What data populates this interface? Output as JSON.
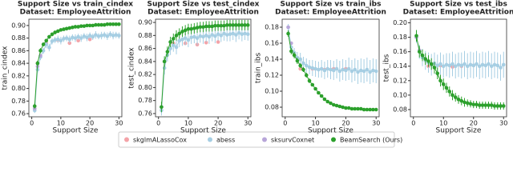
{
  "chart_data": [
    {
      "type": "scatter",
      "title": "Support Size vs train_cindex",
      "subtitle": "Dataset: EmployeeAttrition",
      "xlabel": "Support Size",
      "ylabel": "train_cindex",
      "xlim": [
        -1,
        31
      ],
      "xticks": [
        0,
        10,
        20,
        30
      ],
      "ylim": [
        0.755,
        0.91
      ],
      "yticks": [
        0.76,
        0.78,
        {
          "value": 0.8,
          "label": "0.80"
        },
        0.82,
        0.84,
        0.86,
        0.88,
        {
          "value": 0.9,
          "label": "0.90"
        }
      ],
      "series": [
        {
          "name": "skglmALassoCox",
          "color": "#f4a3a8",
          "x": [
            1,
            2,
            5,
            9,
            13,
            16,
            20
          ],
          "values": [
            0.768,
            0.84,
            0.872,
            0.877,
            0.872,
            0.876,
            0.878
          ]
        },
        {
          "name": "abess",
          "color": "#a6cee3",
          "x": [
            1,
            2,
            3,
            4,
            5,
            6,
            7,
            8,
            9,
            10,
            11,
            12,
            13,
            14,
            15,
            16,
            17,
            18,
            19,
            20,
            21,
            22,
            23,
            24,
            25,
            26,
            27,
            28,
            29,
            30
          ],
          "values": [
            0.765,
            0.83,
            0.85,
            0.86,
            0.87,
            0.865,
            0.875,
            0.877,
            0.878,
            0.876,
            0.879,
            0.88,
            0.878,
            0.881,
            0.88,
            0.882,
            0.88,
            0.883,
            0.881,
            0.884,
            0.882,
            0.885,
            0.883,
            0.884,
            0.885,
            0.883,
            0.886,
            0.884,
            0.885,
            0.884
          ],
          "errors": [
            0.004,
            0.005,
            0.005,
            0.005,
            0.006,
            0.006,
            0.005,
            0.005,
            0.006,
            0.006,
            0.005,
            0.005,
            0.006,
            0.005,
            0.006,
            0.005,
            0.006,
            0.005,
            0.006,
            0.005,
            0.005,
            0.006,
            0.005,
            0.006,
            0.005,
            0.006,
            0.005,
            0.006,
            0.005,
            0.005
          ]
        },
        {
          "name": "sksurvCoxnet",
          "color": "#b8a6d9",
          "x": [
            1,
            2,
            3
          ],
          "values": [
            0.768,
            0.835,
            0.852
          ]
        },
        {
          "name": "BeamSearch (Ours)",
          "color": "#2ca02c",
          "x": [
            1,
            2,
            3,
            4,
            5,
            6,
            7,
            8,
            9,
            10,
            11,
            12,
            13,
            14,
            15,
            16,
            17,
            18,
            19,
            20,
            21,
            22,
            23,
            24,
            25,
            26,
            27,
            28,
            29,
            30
          ],
          "values": [
            0.772,
            0.84,
            0.86,
            0.87,
            0.876,
            0.882,
            0.886,
            0.889,
            0.891,
            0.893,
            0.894,
            0.895,
            0.896,
            0.897,
            0.898,
            0.898,
            0.899,
            0.899,
            0.9,
            0.9,
            0.9,
            0.901,
            0.901,
            0.901,
            0.901,
            0.902,
            0.902,
            0.902,
            0.902,
            0.902
          ],
          "errors": [
            0.004,
            0.004,
            0.004,
            0.003,
            0.003,
            0.003,
            0.003,
            0.003,
            0.002,
            0.002,
            0.002,
            0.002,
            0.002,
            0.002,
            0.002,
            0.002,
            0.002,
            0.002,
            0.002,
            0.002,
            0.002,
            0.002,
            0.002,
            0.002,
            0.002,
            0.002,
            0.002,
            0.002,
            0.002,
            0.002
          ]
        }
      ]
    },
    {
      "type": "scatter",
      "title": "Support Size vs test_cindex",
      "subtitle": "Dataset: EmployeeAttrition",
      "xlabel": "Support Size",
      "ylabel": "test_cindex",
      "xlim": [
        -1,
        31
      ],
      "xticks": [
        0,
        10,
        20,
        30
      ],
      "ylim": [
        0.755,
        0.905
      ],
      "yticks": [
        0.76,
        0.78,
        {
          "value": 0.8,
          "label": "0.80"
        },
        0.82,
        0.84,
        0.86,
        0.88,
        {
          "value": 0.9,
          "label": "0.90"
        }
      ],
      "series": [
        {
          "color": "#f4a3a8",
          "x": [
            2,
            5,
            9,
            13,
            16,
            20
          ],
          "values": [
            0.84,
            0.868,
            0.868,
            0.866,
            0.869,
            0.87
          ]
        },
        {
          "color": "#a6cee3",
          "x": [
            1,
            2,
            3,
            4,
            5,
            6,
            7,
            8,
            9,
            10,
            11,
            12,
            13,
            14,
            15,
            16,
            17,
            18,
            19,
            20,
            21,
            22,
            23,
            24,
            25,
            26,
            27,
            28,
            29,
            30
          ],
          "values": [
            0.765,
            0.83,
            0.85,
            0.86,
            0.865,
            0.862,
            0.872,
            0.874,
            0.876,
            0.873,
            0.877,
            0.878,
            0.876,
            0.879,
            0.878,
            0.88,
            0.878,
            0.881,
            0.879,
            0.882,
            0.88,
            0.883,
            0.881,
            0.882,
            0.883,
            0.881,
            0.884,
            0.882,
            0.883,
            0.882
          ],
          "errors": [
            0.008,
            0.01,
            0.01,
            0.01,
            0.01,
            0.011,
            0.01,
            0.01,
            0.011,
            0.011,
            0.01,
            0.01,
            0.011,
            0.01,
            0.011,
            0.01,
            0.011,
            0.01,
            0.011,
            0.01,
            0.01,
            0.011,
            0.01,
            0.011,
            0.01,
            0.011,
            0.01,
            0.011,
            0.01,
            0.01
          ]
        },
        {
          "color": "#b8a6d9",
          "x": [
            1,
            2
          ],
          "values": [
            0.77,
            0.84
          ]
        },
        {
          "color": "#2ca02c",
          "x": [
            1,
            2,
            3,
            4,
            5,
            6,
            7,
            8,
            9,
            10,
            11,
            12,
            13,
            14,
            15,
            16,
            17,
            18,
            19,
            20,
            21,
            22,
            23,
            24,
            25,
            26,
            27,
            28,
            29,
            30
          ],
          "values": [
            0.77,
            0.84,
            0.855,
            0.87,
            0.875,
            0.88,
            0.883,
            0.886,
            0.888,
            0.89,
            0.89,
            0.891,
            0.892,
            0.893,
            0.893,
            0.894,
            0.894,
            0.894,
            0.895,
            0.895,
            0.895,
            0.895,
            0.896,
            0.896,
            0.896,
            0.896,
            0.896,
            0.896,
            0.896,
            0.896
          ],
          "errors": [
            0.008,
            0.008,
            0.008,
            0.008,
            0.008,
            0.008,
            0.008,
            0.008,
            0.008,
            0.008,
            0.008,
            0.008,
            0.008,
            0.008,
            0.008,
            0.008,
            0.008,
            0.008,
            0.008,
            0.008,
            0.008,
            0.008,
            0.008,
            0.008,
            0.008,
            0.008,
            0.008,
            0.008,
            0.008,
            0.008
          ]
        }
      ]
    },
    {
      "type": "scatter",
      "title": "Support Size vs train_ibs",
      "subtitle": "Dataset: EmployeeAttrition",
      "xlabel": "Support Size",
      "ylabel": "train_ibs",
      "xlim": [
        -1,
        31
      ],
      "xticks": [
        0,
        10,
        20,
        30
      ],
      "ylim": [
        0.068,
        0.19
      ],
      "yticks": [
        0.08,
        {
          "value": 0.1,
          "label": "0.10"
        },
        0.12,
        0.14,
        0.16,
        0.18
      ],
      "series": [
        {
          "color": "#f4a3a8",
          "x": [
            5,
            9,
            13,
            16,
            20
          ],
          "values": [
            0.128,
            0.128,
            0.127,
            0.128,
            0.128
          ]
        },
        {
          "color": "#a6cee3",
          "x": [
            1,
            2,
            3,
            4,
            5,
            6,
            7,
            8,
            9,
            10,
            11,
            12,
            13,
            14,
            15,
            16,
            17,
            18,
            19,
            20,
            21,
            22,
            23,
            24,
            25,
            26,
            27,
            28,
            29,
            30
          ],
          "values": [
            0.18,
            0.155,
            0.148,
            0.142,
            0.14,
            0.135,
            0.132,
            0.13,
            0.129,
            0.128,
            0.127,
            0.128,
            0.126,
            0.128,
            0.127,
            0.126,
            0.128,
            0.125,
            0.127,
            0.126,
            0.128,
            0.125,
            0.127,
            0.124,
            0.126,
            0.125,
            0.127,
            0.124,
            0.126,
            0.125
          ],
          "errors": [
            0.004,
            0.005,
            0.006,
            0.007,
            0.008,
            0.008,
            0.009,
            0.009,
            0.01,
            0.01,
            0.01,
            0.011,
            0.011,
            0.011,
            0.012,
            0.012,
            0.012,
            0.013,
            0.013,
            0.013,
            0.014,
            0.014,
            0.014,
            0.015,
            0.015,
            0.015,
            0.015,
            0.015,
            0.015,
            0.015
          ]
        },
        {
          "color": "#b8a6d9",
          "x": [
            1,
            2
          ],
          "values": [
            0.18,
            0.16
          ]
        },
        {
          "color": "#2ca02c",
          "x": [
            1,
            2,
            3,
            4,
            5,
            6,
            7,
            8,
            9,
            10,
            11,
            12,
            13,
            14,
            15,
            16,
            17,
            18,
            19,
            20,
            21,
            22,
            23,
            24,
            25,
            26,
            27,
            28,
            29,
            30
          ],
          "values": [
            0.172,
            0.15,
            0.145,
            0.138,
            0.132,
            0.127,
            0.12,
            0.113,
            0.108,
            0.103,
            0.098,
            0.094,
            0.09,
            0.087,
            0.085,
            0.083,
            0.082,
            0.081,
            0.08,
            0.079,
            0.079,
            0.078,
            0.078,
            0.078,
            0.078,
            0.077,
            0.077,
            0.077,
            0.077,
            0.077
          ],
          "errors": [
            0.004,
            0.004,
            0.004,
            0.004,
            0.003,
            0.003,
            0.003,
            0.003,
            0.002,
            0.002,
            0.002,
            0.002,
            0.002,
            0.002,
            0.002,
            0.002,
            0.002,
            0.002,
            0.002,
            0.002,
            0.002,
            0.002,
            0.002,
            0.002,
            0.002,
            0.002,
            0.002,
            0.002,
            0.002,
            0.002
          ]
        }
      ]
    },
    {
      "type": "scatter",
      "title": "Support Size vs test_ibs",
      "subtitle": "Dataset: EmployeeAttrition",
      "xlabel": "Support Size",
      "ylabel": "test_ibs",
      "xlim": [
        -1,
        31
      ],
      "xticks": [
        0,
        10,
        20,
        30
      ],
      "ylim": [
        0.07,
        0.205
      ],
      "yticks": [
        0.08,
        {
          "value": 0.1,
          "label": "0.10"
        },
        0.12,
        0.14,
        0.16,
        0.18,
        {
          "value": 0.2,
          "label": "0.20"
        }
      ],
      "series": [
        {
          "color": "#f4a3a8",
          "x": [
            5,
            9,
            13,
            16,
            20
          ],
          "values": [
            0.14,
            0.141,
            0.139,
            0.14,
            0.141
          ]
        },
        {
          "color": "#a6cee3",
          "x": [
            1,
            2,
            3,
            4,
            5,
            6,
            7,
            8,
            9,
            10,
            11,
            12,
            13,
            14,
            15,
            16,
            17,
            18,
            19,
            20,
            21,
            22,
            23,
            24,
            25,
            26,
            27,
            28,
            29,
            30
          ],
          "values": [
            0.18,
            0.16,
            0.152,
            0.148,
            0.145,
            0.142,
            0.144,
            0.141,
            0.143,
            0.14,
            0.142,
            0.141,
            0.143,
            0.14,
            0.142,
            0.141,
            0.143,
            0.14,
            0.142,
            0.141,
            0.143,
            0.14,
            0.142,
            0.141,
            0.143,
            0.14,
            0.142,
            0.141,
            0.138,
            0.142
          ],
          "errors": [
            0.008,
            0.01,
            0.012,
            0.013,
            0.014,
            0.015,
            0.015,
            0.015,
            0.016,
            0.016,
            0.016,
            0.017,
            0.017,
            0.017,
            0.017,
            0.018,
            0.018,
            0.018,
            0.018,
            0.018,
            0.018,
            0.018,
            0.018,
            0.018,
            0.018,
            0.018,
            0.018,
            0.018,
            0.018,
            0.018
          ]
        },
        {
          "color": "#b8a6d9",
          "x": [
            1,
            2
          ],
          "values": [
            0.18,
            0.162
          ]
        },
        {
          "color": "#2ca02c",
          "x": [
            1,
            2,
            3,
            4,
            5,
            6,
            7,
            8,
            9,
            10,
            11,
            12,
            13,
            14,
            15,
            16,
            17,
            18,
            19,
            20,
            21,
            22,
            23,
            24,
            25,
            26,
            27,
            28,
            29,
            30
          ],
          "values": [
            0.182,
            0.16,
            0.155,
            0.15,
            0.147,
            0.143,
            0.138,
            0.13,
            0.12,
            0.115,
            0.11,
            0.105,
            0.1,
            0.097,
            0.094,
            0.092,
            0.09,
            0.089,
            0.088,
            0.087,
            0.087,
            0.086,
            0.086,
            0.086,
            0.086,
            0.086,
            0.085,
            0.085,
            0.085,
            0.085
          ],
          "errors": [
            0.008,
            0.008,
            0.008,
            0.008,
            0.008,
            0.008,
            0.008,
            0.008,
            0.008,
            0.008,
            0.007,
            0.007,
            0.007,
            0.006,
            0.006,
            0.006,
            0.006,
            0.005,
            0.005,
            0.005,
            0.005,
            0.005,
            0.005,
            0.005,
            0.005,
            0.005,
            0.005,
            0.005,
            0.005,
            0.005
          ]
        }
      ]
    }
  ]
}
